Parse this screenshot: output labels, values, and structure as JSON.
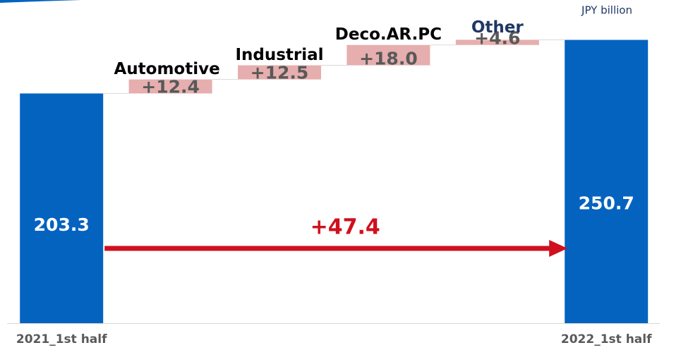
{
  "chart_data": {
    "type": "waterfall",
    "unit_label": "JPY  billion",
    "categories": [
      "2021_1st half",
      "Automotive",
      "Industrial",
      "Deco.AR.PC",
      "Other",
      "2022_1st half"
    ],
    "measures": [
      "absolute",
      "relative",
      "relative",
      "relative",
      "relative",
      "total"
    ],
    "values": [
      203.3,
      12.4,
      12.5,
      18.0,
      4.6,
      250.7
    ],
    "value_labels": [
      "203.3",
      "+12.4",
      "+12.5",
      "+18.0",
      "+4.6",
      "250.7"
    ],
    "total_color": "#0563c0",
    "increase_color": "#e6aeae",
    "change_label": "+47.4",
    "change_color": "#d0101e",
    "ylim": [
      0,
      286
    ]
  }
}
